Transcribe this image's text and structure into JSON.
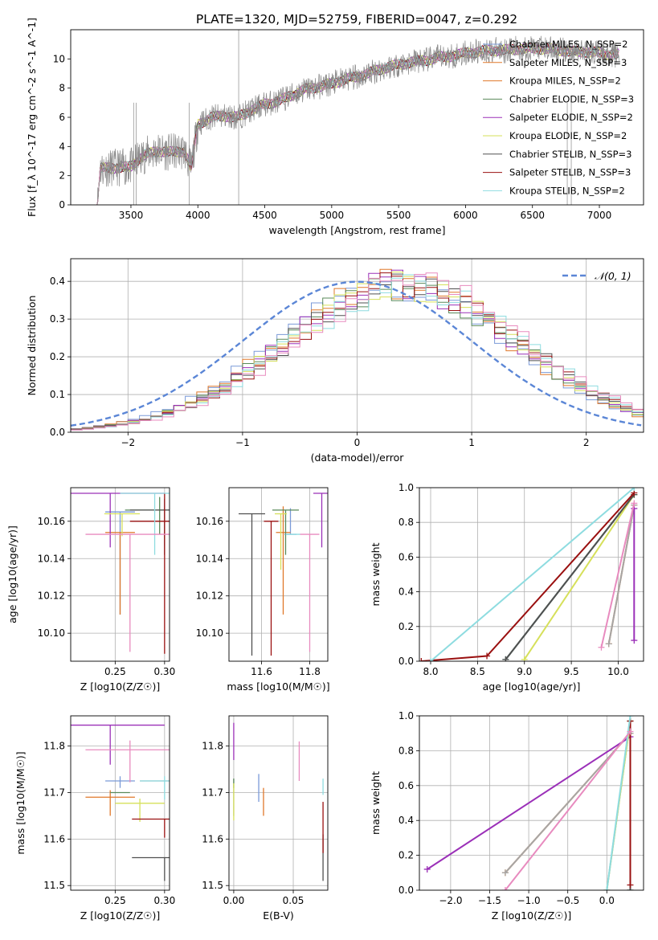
{
  "page": {
    "title": "PLATE=1320, MJD=52759, FIBERID=0047, z=0.292"
  },
  "palette": [
    "#7a9ad8",
    "#e0782a",
    "#a6a6a6",
    "#5a8a5a",
    "#9b30b8",
    "#d6e05a",
    "#505050",
    "#9a1010",
    "#8edce0",
    "#e88bbf"
  ],
  "chart_data": [
    {
      "id": "spectrum",
      "type": "line",
      "title": "PLATE=1320, MJD=52759, FIBERID=0047, z=0.292",
      "xlabel": "wavelength [Angstrom, rest frame]",
      "ylabel": "Flux [f_λ 10^-17 erg cm^-2 s^-1 A^-1]",
      "xlim": [
        3050,
        7330
      ],
      "ylim": [
        0,
        12
      ],
      "xticks": [
        3500,
        4000,
        4500,
        5000,
        5500,
        6000,
        6500,
        7000
      ],
      "yticks": [
        0,
        2,
        4,
        6,
        8,
        10
      ],
      "grid": false,
      "legend_position": "top-right",
      "legend": [
        "Chabrier MILES, N_SSP=2",
        "Salpeter MILES, N_SSP=3",
        "Kroupa MILES, N_SSP=2",
        "Chabrier ELODIE, N_SSP=3",
        "Salpeter ELODIE, N_SSP=2",
        "Kroupa ELODIE, N_SSP=2",
        "Chabrier STELIB, N_SSP=3",
        "Salpeter STELIB, N_SSP=3",
        "Kroupa STELIB, N_SSP=2"
      ],
      "data_series": {
        "wavelength": [
          3250,
          3270,
          3500,
          3540,
          3600,
          3700,
          3800,
          3900,
          3950,
          4000,
          4100,
          4200,
          4300,
          4400,
          4500,
          4600,
          4700,
          4800,
          4900,
          5000,
          5100,
          5200,
          5300,
          5400,
          5500,
          5600,
          5700,
          5800,
          5900,
          6000,
          6100,
          6200,
          6300,
          6400,
          6500,
          6600,
          6700,
          6800,
          6900,
          7000,
          7100
        ],
        "flux": [
          0.0,
          2.5,
          2.6,
          3.0,
          3.4,
          3.7,
          3.6,
          3.7,
          2.5,
          5.5,
          6.0,
          6.1,
          6.0,
          6.5,
          6.9,
          7.1,
          7.5,
          7.9,
          8.1,
          8.3,
          8.6,
          8.8,
          9.1,
          9.4,
          9.6,
          9.8,
          9.9,
          10.1,
          10.2,
          10.4,
          10.5,
          10.6,
          10.6,
          10.7,
          10.7,
          10.7,
          10.6,
          10.5,
          10.5,
          10.4,
          10.3
        ]
      }
    },
    {
      "id": "residuals",
      "type": "histogram",
      "xlabel": "(data-model)/error",
      "ylabel": "Normed distribution",
      "xlim": [
        -2.5,
        2.5
      ],
      "ylim": [
        0,
        0.46
      ],
      "xticks": [
        -2,
        -1,
        0,
        1,
        2
      ],
      "yticks": [
        0.0,
        0.1,
        0.2,
        0.3,
        0.4
      ],
      "grid": true,
      "legend_position": "top-right",
      "legend": [
        "𝒩(0, 1)"
      ],
      "reference_curve": {
        "mean": 0,
        "sigma": 1
      },
      "bin_width": 0.1,
      "histogram_center": 0.4,
      "histogram_sigma": 1.02
    },
    {
      "id": "age-vs-z",
      "type": "errorbar",
      "xlabel": "Z [log10(Z/Z☉)]",
      "ylabel": "age [log10(age/yr)]",
      "xlim": [
        0.205,
        0.305
      ],
      "ylim": [
        10.085,
        10.178
      ],
      "xticks": [
        0.25,
        0.3
      ],
      "xticklabels": [
        "0.25",
        "0.30"
      ],
      "yticks": [
        10.1,
        10.12,
        10.14,
        10.16
      ],
      "yticklabels": [
        "10.10",
        "10.12",
        "10.14",
        "10.16"
      ],
      "grid": true,
      "points": [
        {
          "x": 0.255,
          "y": 10.165,
          "xerr": 0.015,
          "yerr_lo": 0.055,
          "yerr_hi": 0.0
        },
        {
          "x": 0.255,
          "y": 10.154,
          "xerr": 0.015,
          "yerr_lo": 0.044,
          "yerr_hi": 0.0
        },
        {
          "x": 0.3,
          "y": 10.16,
          "xerr": 0.035,
          "yerr_lo": 0.013,
          "yerr_hi": 0.007
        },
        {
          "x": 0.295,
          "y": 10.166,
          "xerr": 0.035,
          "yerr_lo": 0.013,
          "yerr_hi": 0.007
        },
        {
          "x": 0.245,
          "y": 10.175,
          "xerr": 0.055,
          "yerr_lo": 0.029,
          "yerr_hi": 0.0
        },
        {
          "x": 0.257,
          "y": 10.164,
          "xerr": 0.018,
          "yerr_lo": 0.012,
          "yerr_hi": 0.0
        },
        {
          "x": 0.3,
          "y": 10.166,
          "xerr": 0.035,
          "yerr_lo": 0.024,
          "yerr_hi": 0.006
        },
        {
          "x": 0.3,
          "y": 10.16,
          "xerr": 0.035,
          "yerr_lo": 0.071,
          "yerr_hi": 0.015
        },
        {
          "x": 0.29,
          "y": 10.175,
          "xerr": 0.035,
          "yerr_lo": 0.033,
          "yerr_hi": 0.0
        },
        {
          "x": 0.265,
          "y": 10.153,
          "xerr": 0.045,
          "yerr_lo": 0.063,
          "yerr_hi": 0.0
        }
      ]
    },
    {
      "id": "age-vs-mass",
      "type": "errorbar",
      "xlabel": "mass [log10(M/M☉)]",
      "ylabel": "",
      "xlim": [
        11.465,
        11.875
      ],
      "ylim": [
        10.085,
        10.178
      ],
      "xticks": [
        11.6,
        11.8
      ],
      "xticklabels": [
        "11.6",
        "11.8"
      ],
      "yticks": [
        10.1,
        10.12,
        10.14,
        10.16
      ],
      "yticklabels": [
        "10.10",
        "10.12",
        "10.14",
        "10.16"
      ],
      "grid": true,
      "points": [
        {
          "x": 11.72,
          "y": 10.153,
          "xerr": 0.025,
          "yerr_lo": 0.0,
          "yerr_hi": 0.014
        },
        {
          "x": 11.69,
          "y": 10.154,
          "xerr": 0.03,
          "yerr_lo": 0.044,
          "yerr_hi": 0.014
        },
        {
          "x": 11.58,
          "y": 10.16,
          "xerr": 0.0,
          "yerr_lo": 0.0,
          "yerr_hi": 0.0
        },
        {
          "x": 11.7,
          "y": 10.166,
          "xerr": 0.055,
          "yerr_lo": 0.024,
          "yerr_hi": 0.0
        },
        {
          "x": 11.85,
          "y": 10.175,
          "xerr": 0.035,
          "yerr_lo": 0.029,
          "yerr_hi": 0.0
        },
        {
          "x": 11.68,
          "y": 10.164,
          "xerr": 0.025,
          "yerr_lo": 0.03,
          "yerr_hi": 0.0
        },
        {
          "x": 11.56,
          "y": 10.164,
          "xerr": 0.055,
          "yerr_lo": 0.076,
          "yerr_hi": 0.0
        },
        {
          "x": 11.64,
          "y": 10.16,
          "xerr": 0.03,
          "yerr_lo": 0.072,
          "yerr_hi": 0.0
        },
        {
          "x": 11.73,
          "y": 10.153,
          "xerr": 0.03,
          "yerr_lo": 0.0,
          "yerr_hi": 0.0
        },
        {
          "x": 11.8,
          "y": 10.153,
          "xerr": 0.04,
          "yerr_lo": 0.063,
          "yerr_hi": 0.0
        }
      ]
    },
    {
      "id": "mass-weight-vs-age",
      "type": "line",
      "xlabel": "age [log10(age/yr)]",
      "ylabel": "mass weight",
      "xlim": [
        7.88,
        10.27
      ],
      "ylim": [
        0,
        1
      ],
      "xticks": [
        8.0,
        8.5,
        9.0,
        9.5,
        10.0
      ],
      "xticklabels": [
        "8.0",
        "8.5",
        "9.0",
        "9.5",
        "10.0"
      ],
      "yticks": [
        0.0,
        0.2,
        0.4,
        0.6,
        0.8,
        1.0
      ],
      "yticklabels": [
        "0.0",
        "0.2",
        "0.4",
        "0.6",
        "0.8",
        "1.0"
      ],
      "grid": true,
      "series": [
        {
          "x": [
            8.8,
            10.17
          ],
          "y": [
            0.01,
            0.96
          ]
        },
        {
          "x": [
            9.9,
            10.17
          ],
          "y": [
            0.1,
            0.9
          ]
        },
        {
          "x": [
            9.9,
            10.17
          ],
          "y": [
            0.1,
            0.9
          ]
        },
        {
          "x": [
            8.8,
            10.17
          ],
          "y": [
            0.01,
            0.96
          ]
        },
        {
          "x": [
            10.17,
            10.17
          ],
          "y": [
            0.12,
            0.88
          ]
        },
        {
          "x": [
            9.0,
            10.17
          ],
          "y": [
            0.01,
            0.96
          ]
        },
        {
          "x": [
            8.8,
            10.17
          ],
          "y": [
            0.01,
            0.96
          ]
        },
        {
          "x": [
            7.9,
            8.6,
            10.17
          ],
          "y": [
            0.0,
            0.03,
            0.97
          ]
        },
        {
          "x": [
            8.0,
            10.17
          ],
          "y": [
            0.0,
            1.0
          ]
        },
        {
          "x": [
            9.82,
            10.17
          ],
          "y": [
            0.08,
            0.91
          ]
        }
      ]
    },
    {
      "id": "mass-vs-z",
      "type": "errorbar",
      "xlabel": "Z [log10(Z/Z☉)]",
      "ylabel": "mass [log10(M/M☉)]",
      "xlim": [
        0.205,
        0.305
      ],
      "ylim": [
        11.49,
        11.865
      ],
      "xticks": [
        0.25,
        0.3
      ],
      "xticklabels": [
        "0.25",
        "0.30"
      ],
      "yticks": [
        11.5,
        11.6,
        11.7,
        11.8
      ],
      "yticklabels": [
        "11.5",
        "11.6",
        "11.7",
        "11.8"
      ],
      "grid": true,
      "points": [
        {
          "x": 0.255,
          "y": 11.725,
          "xerr": 0.015,
          "yerr_lo": 0.015,
          "yerr_hi": 0.01
        },
        {
          "x": 0.245,
          "y": 11.69,
          "xerr": 0.025,
          "yerr_lo": 0.04,
          "yerr_hi": 0.015
        },
        {
          "x": 0.3,
          "y": 11.725,
          "xerr": 0.025,
          "yerr_lo": 0.0,
          "yerr_hi": 0.0
        },
        {
          "x": 0.255,
          "y": 11.7,
          "xerr": 0.01,
          "yerr_lo": 0.0,
          "yerr_hi": 0.0
        },
        {
          "x": 0.245,
          "y": 11.845,
          "xerr": 0.055,
          "yerr_lo": 0.085,
          "yerr_hi": 0.0
        },
        {
          "x": 0.275,
          "y": 11.677,
          "xerr": 0.025,
          "yerr_lo": 0.04,
          "yerr_hi": 0.01
        },
        {
          "x": 0.3,
          "y": 11.56,
          "xerr": 0.033,
          "yerr_lo": 0.05,
          "yerr_hi": 0.0
        },
        {
          "x": 0.3,
          "y": 11.643,
          "xerr": 0.033,
          "yerr_lo": 0.04,
          "yerr_hi": 0.0
        },
        {
          "x": 0.3,
          "y": 11.725,
          "xerr": 0.025,
          "yerr_lo": 0.04,
          "yerr_hi": 0.01
        },
        {
          "x": 0.265,
          "y": 11.792,
          "xerr": 0.045,
          "yerr_lo": 0.07,
          "yerr_hi": 0.02
        }
      ]
    },
    {
      "id": "mass-vs-ebv",
      "type": "errorbar",
      "xlabel": "E(B-V)",
      "ylabel": "",
      "xlim": [
        -0.004,
        0.079
      ],
      "ylim": [
        11.49,
        11.865
      ],
      "xticks": [
        0.0,
        0.05
      ],
      "xticklabels": [
        "0.00",
        "0.05"
      ],
      "yticks": [
        11.5,
        11.6,
        11.7,
        11.8
      ],
      "yticklabels": [
        "11.5",
        "11.6",
        "11.7",
        "11.8"
      ],
      "grid": true,
      "points": [
        {
          "x": 0.021,
          "y": 11.7,
          "xerr": 0.0,
          "yerr_lo": 0.02,
          "yerr_hi": 0.04
        },
        {
          "x": 0.025,
          "y": 11.68,
          "xerr": 0.0,
          "yerr_lo": 0.03,
          "yerr_hi": 0.03
        },
        {
          "x": 0.0,
          "y": 11.69,
          "xerr": 0.0,
          "yerr_lo": 0.04,
          "yerr_hi": 0.04
        },
        {
          "x": 0.0,
          "y": 11.72,
          "xerr": 0.0,
          "yerr_lo": 0.01,
          "yerr_hi": 0.01
        },
        {
          "x": 0.0,
          "y": 11.81,
          "xerr": 0.0,
          "yerr_lo": 0.04,
          "yerr_hi": 0.04
        },
        {
          "x": 0.0,
          "y": 11.69,
          "xerr": 0.0,
          "yerr_lo": 0.05,
          "yerr_hi": 0.03
        },
        {
          "x": 0.075,
          "y": 11.56,
          "xerr": 0.0,
          "yerr_lo": 0.05,
          "yerr_hi": 0.05
        },
        {
          "x": 0.075,
          "y": 11.64,
          "xerr": 0.0,
          "yerr_lo": 0.07,
          "yerr_hi": 0.04
        },
        {
          "x": 0.075,
          "y": 11.71,
          "xerr": 0.0,
          "yerr_lo": 0.015,
          "yerr_hi": 0.02
        },
        {
          "x": 0.055,
          "y": 11.77,
          "xerr": 0.0,
          "yerr_lo": 0.045,
          "yerr_hi": 0.04
        }
      ]
    },
    {
      "id": "mass-weight-vs-z",
      "type": "line",
      "xlabel": "Z [log10(Z/Z☉)]",
      "ylabel": "mass weight",
      "xlim": [
        -2.4,
        0.47
      ],
      "ylim": [
        0,
        1
      ],
      "xticks": [
        -2.0,
        -1.5,
        -1.0,
        -0.5,
        0.0
      ],
      "xticklabels": [
        "−2.0",
        "−1.5",
        "−1.0",
        "−0.5",
        "0.0"
      ],
      "yticks": [
        0.0,
        0.2,
        0.4,
        0.6,
        0.8,
        1.0
      ],
      "yticklabels": [
        "0.0",
        "0.2",
        "0.4",
        "0.6",
        "0.8",
        "1.0"
      ],
      "grid": true,
      "series": [
        {
          "x": [
            0.0,
            0.3
          ],
          "y": [
            0.0,
            0.97
          ]
        },
        {
          "x": [
            -1.3,
            0.3
          ],
          "y": [
            0.1,
            0.9
          ]
        },
        {
          "x": [
            -1.3,
            0.3
          ],
          "y": [
            0.1,
            0.9
          ]
        },
        {
          "x": [
            0.3,
            0.3
          ],
          "y": [
            0.0,
            0.97
          ]
        },
        {
          "x": [
            -2.3,
            0.3
          ],
          "y": [
            0.12,
            0.88
          ]
        },
        {
          "x": [
            0.0,
            0.3
          ],
          "y": [
            0.0,
            0.97
          ]
        },
        {
          "x": [
            0.3,
            0.3
          ],
          "y": [
            0.0,
            0.97
          ]
        },
        {
          "x": [
            0.3,
            0.3
          ],
          "y": [
            0.03,
            0.97
          ]
        },
        {
          "x": [
            0.0,
            0.3
          ],
          "y": [
            0.0,
            1.0
          ]
        },
        {
          "x": [
            -1.3,
            0.3
          ],
          "y": [
            0.0,
            0.91
          ]
        }
      ]
    }
  ]
}
